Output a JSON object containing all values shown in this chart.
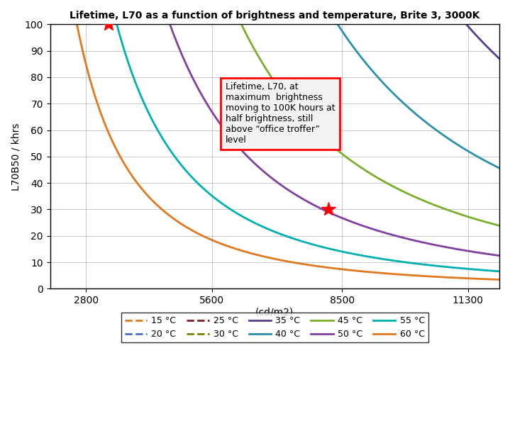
{
  "title": "Lifetime, L70 as a function of brightness and temperature, Brite 3, 3000K",
  "xlabel": "(cd/m2)",
  "ylabel": "L70B50 / khrs",
  "xlim": [
    2000,
    12000
  ],
  "ylim": [
    0,
    100
  ],
  "xticks": [
    2800,
    5600,
    8500,
    11300
  ],
  "yticks": [
    0,
    10,
    20,
    30,
    40,
    50,
    60,
    70,
    80,
    90,
    100
  ],
  "annotation_text": "Lifetime, L70, at\nmaximum  brightness\nmoving to 100K hours at\nhalf brightness, still\nabove “office troffer”\nlevel",
  "star1_x": 3300,
  "star1_y": 100,
  "star2_x": 8200,
  "star2_y": 30,
  "curve_params": [
    {
      "temp": "15 °C",
      "color": "#E07820",
      "dashed": true,
      "A": 1050000000000.0,
      "p": 2.2
    },
    {
      "temp": "20 °C",
      "color": "#4472C4",
      "dashed": true,
      "A": 550000000000.0,
      "p": 2.2
    },
    {
      "temp": "25 °C",
      "color": "#7B2020",
      "dashed": true,
      "A": 290000000000.0,
      "p": 2.2
    },
    {
      "temp": "30 °C",
      "color": "#7F7F00",
      "dashed": true,
      "A": 155000000000.0,
      "p": 2.2
    },
    {
      "temp": "35 °C",
      "color": "#5A3D8A",
      "dashed": false,
      "A": 82000000000.0,
      "p": 2.2
    },
    {
      "temp": "40 °C",
      "color": "#2C8FAA",
      "dashed": false,
      "A": 43000000000.0,
      "p": 2.2
    },
    {
      "temp": "45 °C",
      "color": "#7AAF2C",
      "dashed": false,
      "A": 22500000000.0,
      "p": 2.2
    },
    {
      "temp": "50 °C",
      "color": "#8040A0",
      "dashed": false,
      "A": 11800000000.0,
      "p": 2.2
    },
    {
      "temp": "55 °C",
      "color": "#00B0B0",
      "dashed": false,
      "A": 6200000000.0,
      "p": 2.2
    },
    {
      "temp": "60 °C",
      "color": "#E07820",
      "dashed": false,
      "A": 3250000000.0,
      "p": 2.2
    }
  ]
}
